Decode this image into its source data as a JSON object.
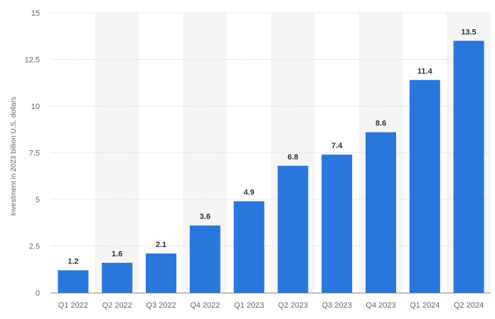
{
  "chart_data": {
    "type": "bar",
    "categories": [
      "Q1 2022",
      "Q2 2022",
      "Q3 2022",
      "Q4 2022",
      "Q1 2023",
      "Q2 2023",
      "Q3 2023",
      "Q4 2023",
      "Q1 2024",
      "Q2 2024"
    ],
    "values": [
      1.2,
      1.6,
      2.1,
      3.6,
      4.9,
      6.8,
      7.4,
      8.6,
      11.4,
      13.5
    ],
    "value_labels": [
      "1.2",
      "1.6",
      "2.1",
      "3.6",
      "4.9",
      "6.8",
      "7.4",
      "8.6",
      "11.4",
      "13.5"
    ],
    "ylabel": "Investment in 2023 billion U.S. dollars",
    "yticks": [
      0,
      2.5,
      5,
      7.5,
      10,
      12.5,
      15
    ],
    "ytick_labels": [
      "0",
      "2.5",
      "5",
      "7.5",
      "10",
      "12.5",
      "15"
    ],
    "ylim": [
      0,
      15
    ],
    "grid": true,
    "bar_color": "#2a77dc",
    "band_color": "#f5f5f5",
    "grid_color": "#dddddd"
  }
}
